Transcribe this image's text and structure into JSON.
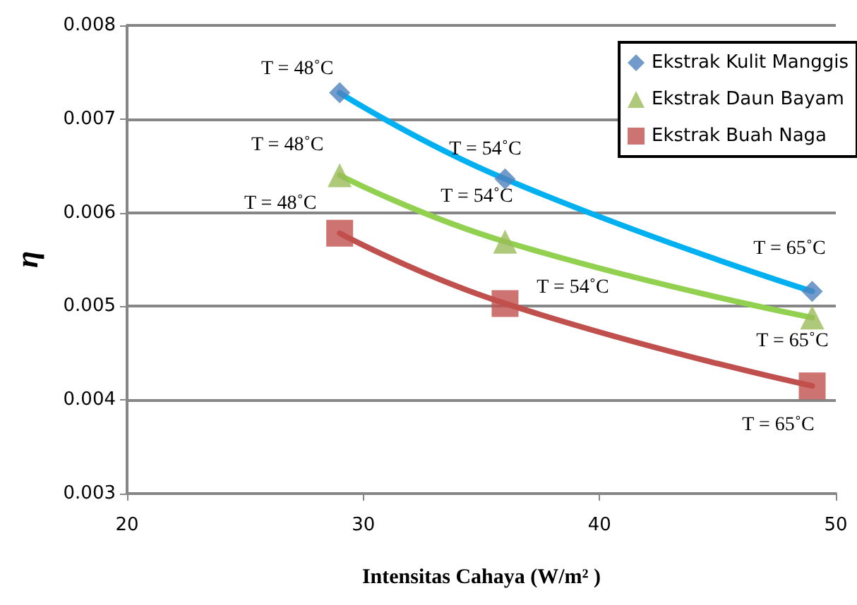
{
  "chart_data": {
    "type": "scatter",
    "xlabel": "Intensitas Cahaya (W/m² )",
    "ylabel": "η",
    "xlim": [
      20,
      50
    ],
    "xticks": [
      20,
      30,
      40,
      50
    ],
    "ylim": [
      0.003,
      0.008
    ],
    "yticks": [
      0.003,
      0.004,
      0.005,
      0.006,
      0.007,
      0.008
    ],
    "grid": "y",
    "legend": "top right",
    "series": [
      {
        "name": "Ekstrak Kulit Manggis",
        "marker": "diamond",
        "color": "#4f81bd",
        "x": [
          29,
          36,
          49
        ],
        "values": [
          0.00728,
          0.00636,
          0.00516
        ]
      },
      {
        "name": "Ekstrak Daun Bayam",
        "marker": "triangle",
        "color": "#9bbb59",
        "x": [
          29,
          36,
          49
        ],
        "values": [
          0.0064,
          0.00569,
          0.00488
        ]
      },
      {
        "name": "Ekstrak Buah Naga",
        "marker": "square",
        "color": "#c0504d",
        "x": [
          29,
          36,
          49
        ],
        "values": [
          0.00578,
          0.00503,
          0.00415
        ]
      },
      {
        "type": "line",
        "marker": "none",
        "color": "#00b0f0",
        "x": [
          29,
          36,
          49
        ],
        "values": [
          0.00728,
          0.00636,
          0.00516
        ]
      },
      {
        "type": "line",
        "marker": "none",
        "color": "#92d050",
        "x": [
          29,
          36,
          49
        ],
        "values": [
          0.0064,
          0.00569,
          0.00488
        ]
      },
      {
        "type": "line",
        "marker": "none",
        "color": "#c0504d",
        "x": [
          29,
          36,
          49
        ],
        "values": [
          0.00578,
          0.00503,
          0.00415
        ]
      }
    ],
    "annotations": [
      {
        "text": "T = 48˚C",
        "x": 29,
        "y": 0.00728
      },
      {
        "text": "T = 54˚C",
        "x": 36,
        "y": 0.00636
      },
      {
        "text": "T = 65˚C",
        "x": 49,
        "y": 0.00516
      },
      {
        "text": "T = 48˚C",
        "x": 29,
        "y": 0.0064
      },
      {
        "text": "T = 54˚C",
        "x": 36,
        "y": 0.00569
      },
      {
        "text": "T = 65˚C",
        "x": 49,
        "y": 0.00488
      },
      {
        "text": "T = 48˚C",
        "x": 29,
        "y": 0.00578
      },
      {
        "text": "T = 54˚C",
        "x": 36,
        "y": 0.00503
      },
      {
        "text": "T = 65˚C",
        "x": 49,
        "y": 0.00415
      }
    ]
  }
}
